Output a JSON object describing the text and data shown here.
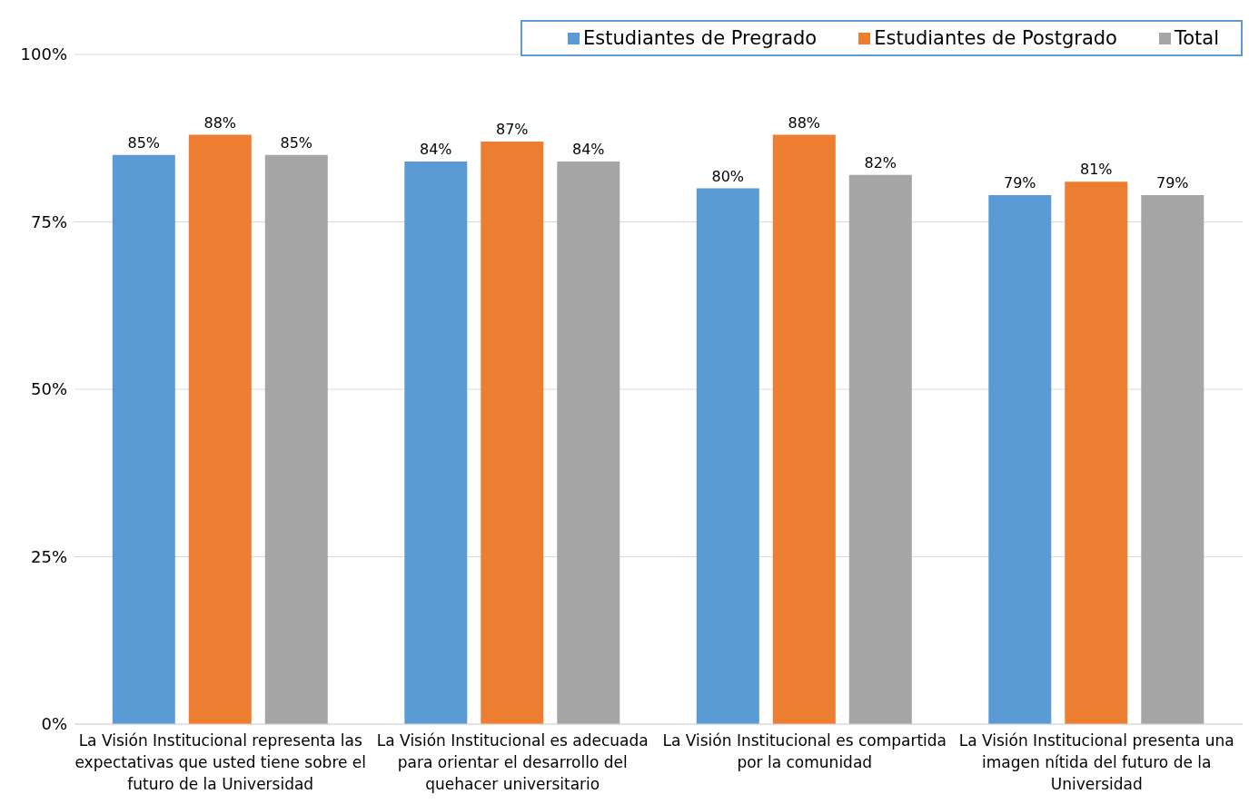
{
  "chart_data": {
    "type": "bar",
    "categories": [
      "La Visión Institucional representa las expectativas que usted tiene sobre el futuro de la Universidad",
      "La Visión Institucional es adecuada para orientar el desarrollo del quehacer universitario",
      "La Visión Institucional es compartida por la comunidad",
      "La Visión Institucional presenta una imagen nítida del futuro de la Universidad"
    ],
    "series": [
      {
        "name": "Estudiantes de Pregrado",
        "color": "#5b9bd5",
        "values": [
          85,
          84,
          80,
          79
        ],
        "value_labels": [
          "85%",
          "84%",
          "80%",
          "79%"
        ]
      },
      {
        "name": "Estudiantes de Postgrado",
        "color": "#ed7d31",
        "values": [
          88,
          87,
          88,
          81
        ],
        "value_labels": [
          "88%",
          "87%",
          "88%",
          "81%"
        ]
      },
      {
        "name": "Total",
        "color": "#a5a5a5",
        "values": [
          85,
          84,
          82,
          79
        ],
        "value_labels": [
          "85%",
          "84%",
          "82%",
          "79%"
        ]
      }
    ],
    "ylim": [
      0,
      100
    ],
    "yticks": [
      {
        "value": 0,
        "label": "0%"
      },
      {
        "value": 25,
        "label": "25%"
      },
      {
        "value": 50,
        "label": "50%"
      },
      {
        "value": 75,
        "label": "75%"
      },
      {
        "value": 100,
        "label": "100%"
      }
    ],
    "grid": "y",
    "legend": "top right"
  }
}
